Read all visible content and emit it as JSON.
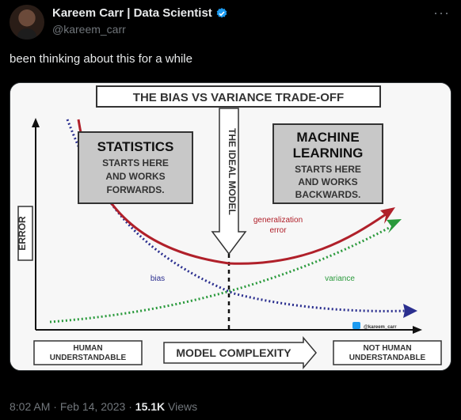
{
  "tweet": {
    "display_name": "Kareem Carr | Data Scientist",
    "handle": "@kareem_carr",
    "text": "been thinking about this for a while",
    "time": "8:02 AM",
    "date": "Feb 14, 2023",
    "separator": "·",
    "views_count": "15.1K",
    "views_label": "Views",
    "more_icon": "more-horizontal-icon",
    "verified_icon": "verified-badge-icon"
  },
  "diagram": {
    "title": "THE BIAS VS VARIANCE TRADE-OFF",
    "y_axis_label": "ERROR",
    "x_axis_label": "MODEL COMPLEXITY",
    "left_axis_box": [
      "HUMAN",
      "UNDERSTANDABLE"
    ],
    "right_axis_box": [
      "NOT HUMAN",
      "UNDERSTANDABLE"
    ],
    "statistics_box": {
      "heading": "STATISTICS",
      "lines": [
        "STARTS HERE",
        "AND WORKS",
        "FORWARDS."
      ]
    },
    "ml_box": {
      "heading": [
        "MACHINE",
        "LEARNING"
      ],
      "lines": [
        "STARTS HERE",
        "AND WORKS",
        "BACKWARDS."
      ]
    },
    "ideal_model_label": "THE IDEAL MODEL",
    "curve_labels": {
      "generalization": [
        "generalization",
        "error"
      ],
      "bias": "bias",
      "variance": "variance"
    },
    "watermark": "@kareem_carr",
    "colors": {
      "generalization": "#b0202a",
      "bias": "#2b2f8f",
      "variance": "#2a9a3c",
      "box_fill": "#c8c8c8"
    }
  }
}
